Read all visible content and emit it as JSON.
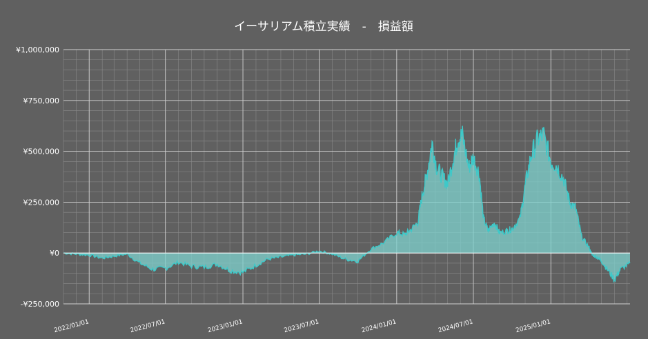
{
  "colors": {
    "background": "#606060",
    "grid_major": "#d0d0d0",
    "grid_minor": "#8a8a8a",
    "line": "#3ec9c9",
    "area": "#7fd3cf",
    "text": "#ffffff"
  },
  "chart_data": {
    "type": "area",
    "title": "イーサリアム積立実績　-　損益額",
    "xlabel": "",
    "ylabel": "",
    "grid": true,
    "legend": "none",
    "x_range": [
      "2021-11-01",
      "2025-07-08"
    ],
    "ylim": [
      -250000,
      1000000
    ],
    "y_ticks": [
      -250000,
      0,
      250000,
      500000,
      750000,
      1000000
    ],
    "y_tick_labels": [
      "-¥250,000",
      "¥0",
      "¥250,000",
      "¥500,000",
      "¥750,000",
      "¥1,000,000"
    ],
    "x_ticks": [
      "2022-01-01",
      "2022-07-01",
      "2023-01-01",
      "2023-07-01",
      "2024-01-01",
      "2024-07-01",
      "2025-01-01"
    ],
    "x_tick_labels": [
      "2022/01/01",
      "2022/07/01",
      "2023/01/01",
      "2023/07/01",
      "2024/01/01",
      "2024/07/01",
      "2025/01/01"
    ],
    "series": [
      {
        "x": [
          "2021-11-01",
          "2021-12-01",
          "2022-01-01",
          "2022-02-01",
          "2022-03-01",
          "2022-04-01",
          "2022-05-01",
          "2022-06-01",
          "2022-07-01",
          "2022-08-01",
          "2022-09-01",
          "2022-10-01",
          "2022-11-01",
          "2022-12-01",
          "2023-01-01",
          "2023-02-01",
          "2023-03-01",
          "2023-04-01",
          "2023-05-01",
          "2023-06-01",
          "2023-07-01",
          "2023-08-01",
          "2023-09-01",
          "2023-10-01",
          "2023-11-01",
          "2023-12-01",
          "2024-01-01",
          "2024-01-20",
          "2024-02-01",
          "2024-02-20",
          "2024-03-01",
          "2024-03-12",
          "2024-03-25",
          "2024-04-05",
          "2024-04-20",
          "2024-05-01",
          "2024-05-15",
          "2024-05-25",
          "2024-06-05",
          "2024-06-20",
          "2024-07-01",
          "2024-07-15",
          "2024-07-25",
          "2024-08-05",
          "2024-08-20",
          "2024-09-01",
          "2024-09-20",
          "2024-10-01",
          "2024-10-20",
          "2024-11-01",
          "2024-11-15",
          "2024-12-01",
          "2024-12-15",
          "2025-01-01",
          "2025-01-15",
          "2025-02-01",
          "2025-02-15",
          "2025-03-01",
          "2025-03-15",
          "2025-04-01",
          "2025-04-09",
          "2025-04-20",
          "2025-05-01",
          "2025-05-15",
          "2025-06-01",
          "2025-06-15",
          "2025-07-08"
        ],
        "values": [
          0,
          -5000,
          -10000,
          -25000,
          -15000,
          -5000,
          -50000,
          -80000,
          -75000,
          -45000,
          -65000,
          -70000,
          -55000,
          -85000,
          -95000,
          -60000,
          -30000,
          -20000,
          -10000,
          -5000,
          10000,
          -5000,
          -30000,
          -40000,
          20000,
          50000,
          100000,
          90000,
          110000,
          150000,
          280000,
          380000,
          540000,
          420000,
          370000,
          340000,
          470000,
          560000,
          580000,
          420000,
          470000,
          390000,
          170000,
          110000,
          150000,
          100000,
          110000,
          120000,
          170000,
          330000,
          480000,
          560000,
          580000,
          450000,
          430000,
          360000,
          250000,
          220000,
          80000,
          30000,
          -10000,
          -20000,
          -40000,
          -80000,
          -130000,
          -80000,
          -50000
        ]
      }
    ]
  }
}
